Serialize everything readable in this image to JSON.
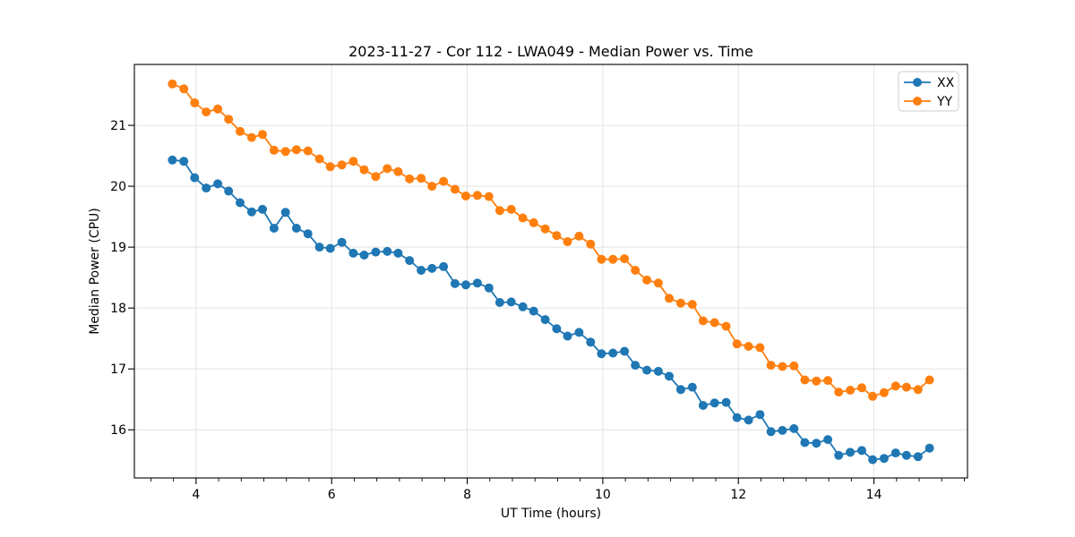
{
  "chart_data": {
    "type": "line",
    "title": "2023-11-27 - Cor 112 - LWA049 - Median Power vs. Time",
    "xlabel": "UT Time (hours)",
    "ylabel": "Median Power (CPU)",
    "xlim": [
      3.09,
      15.38
    ],
    "ylim": [
      15.21,
      22.0
    ],
    "xticks": [
      4,
      6,
      8,
      10,
      12,
      14
    ],
    "yticks": [
      16,
      17,
      18,
      19,
      20,
      21
    ],
    "x_minor_per_major": 3,
    "grid": true,
    "legend_position": "upper right",
    "grid_color": "#e0e0e0",
    "x": [
      3.65,
      3.82,
      3.98,
      4.15,
      4.32,
      4.48,
      4.65,
      4.82,
      4.98,
      5.15,
      5.32,
      5.48,
      5.65,
      5.82,
      5.98,
      6.15,
      6.32,
      6.48,
      6.65,
      6.82,
      6.98,
      7.15,
      7.32,
      7.48,
      7.65,
      7.82,
      7.98,
      8.15,
      8.32,
      8.48,
      8.65,
      8.82,
      8.98,
      9.15,
      9.32,
      9.48,
      9.65,
      9.82,
      9.98,
      10.15,
      10.32,
      10.48,
      10.65,
      10.82,
      10.98,
      11.15,
      11.32,
      11.48,
      11.65,
      11.82,
      11.98,
      12.15,
      12.32,
      12.48,
      12.65,
      12.82,
      12.98,
      13.15,
      13.32,
      13.48,
      13.65,
      13.82,
      13.98,
      14.15,
      14.32,
      14.48,
      14.65,
      14.82
    ],
    "series": [
      {
        "name": "XX",
        "color": "#1f77b4",
        "values": [
          20.43,
          20.41,
          20.14,
          19.97,
          20.04,
          19.92,
          19.73,
          19.58,
          19.62,
          19.31,
          19.57,
          19.31,
          19.22,
          19.0,
          18.98,
          19.08,
          18.9,
          18.87,
          18.92,
          18.93,
          18.9,
          18.78,
          18.62,
          18.65,
          18.68,
          18.4,
          18.38,
          18.41,
          18.33,
          18.09,
          18.1,
          18.02,
          17.95,
          17.81,
          17.66,
          17.54,
          17.6,
          17.44,
          17.25,
          17.26,
          17.29,
          17.06,
          16.98,
          16.96,
          16.88,
          16.66,
          16.7,
          16.4,
          16.44,
          16.45,
          16.2,
          16.16,
          16.25,
          15.97,
          15.99,
          16.02,
          15.79,
          15.78,
          15.84,
          15.58,
          15.63,
          15.66,
          15.51,
          15.53,
          15.62,
          15.58,
          15.56,
          15.7
        ]
      },
      {
        "name": "YY",
        "color": "#ff7f0e",
        "values": [
          21.68,
          21.6,
          21.37,
          21.22,
          21.27,
          21.1,
          20.9,
          20.8,
          20.85,
          20.59,
          20.57,
          20.6,
          20.58,
          20.45,
          20.32,
          20.35,
          20.41,
          20.27,
          20.16,
          20.29,
          20.24,
          20.12,
          20.13,
          20.0,
          20.08,
          19.95,
          19.84,
          19.85,
          19.83,
          19.6,
          19.62,
          19.48,
          19.4,
          19.3,
          19.19,
          19.09,
          19.18,
          19.05,
          18.8,
          18.8,
          18.81,
          18.62,
          18.46,
          18.41,
          18.16,
          18.08,
          18.06,
          17.79,
          17.76,
          17.7,
          17.41,
          17.37,
          17.35,
          17.06,
          17.04,
          17.05,
          16.82,
          16.8,
          16.81,
          16.62,
          16.65,
          16.69,
          16.55,
          16.61,
          16.72,
          16.7,
          16.66,
          16.82
        ]
      }
    ]
  }
}
